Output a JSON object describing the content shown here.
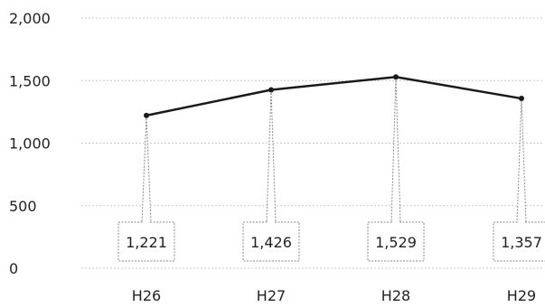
{
  "chart_data": {
    "type": "line",
    "title": "",
    "xlabel": "",
    "ylabel": "",
    "categories": [
      "H26",
      "H27",
      "H28",
      "H29"
    ],
    "series": [
      {
        "values": [
          1221,
          1426,
          1529,
          1357
        ]
      }
    ],
    "data_labels": [
      "1,221",
      "1,426",
      "1,529",
      "1,357"
    ],
    "y_ticks": [
      0,
      500,
      1000,
      1500,
      2000
    ],
    "y_tick_labels": [
      "0",
      "500",
      "1,000",
      "1,500",
      "2,000"
    ],
    "ylim": [
      0,
      2000
    ],
    "grid": true,
    "legend": "none",
    "colors": {
      "line": "#1a1a1a",
      "marker": "#1a1a1a",
      "grid": "#c8c8c8",
      "callout": "#8a8a8a"
    }
  }
}
